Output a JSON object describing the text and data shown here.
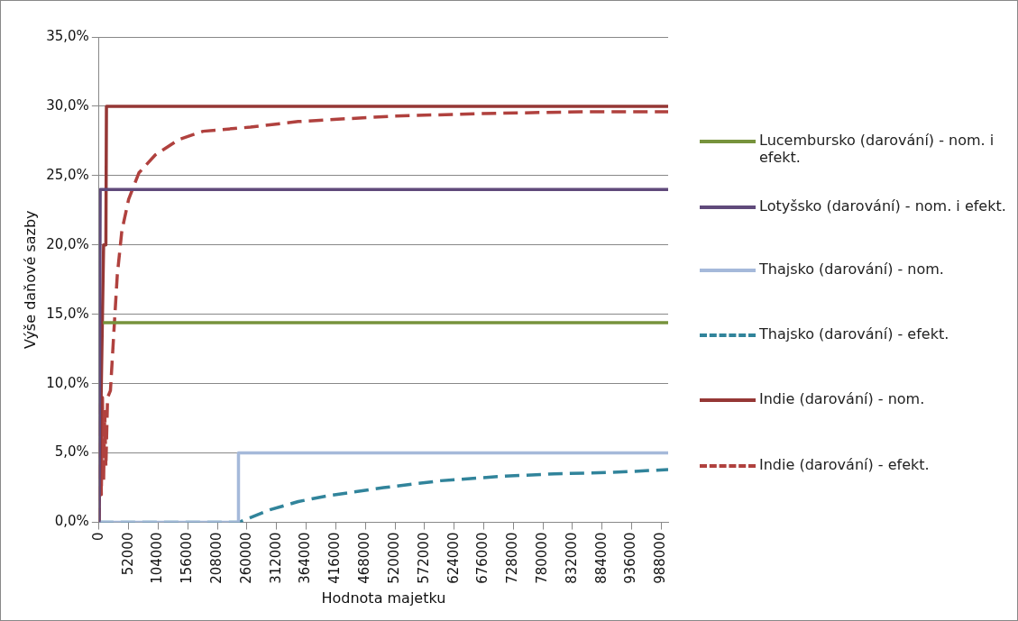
{
  "chart_data": {
    "type": "line",
    "xlabel": "Hodnota majetku",
    "ylabel": "Výše daňové sazby",
    "xlim": [
      0,
      1000000
    ],
    "xticks": [
      0,
      52000,
      104000,
      156000,
      208000,
      260000,
      312000,
      364000,
      416000,
      468000,
      520000,
      572000,
      624000,
      676000,
      728000,
      780000,
      832000,
      884000,
      936000,
      988000
    ],
    "ylim": [
      0,
      35
    ],
    "yticks": [
      {
        "value": 0,
        "label": "0,0%"
      },
      {
        "value": 5,
        "label": "5,0%"
      },
      {
        "value": 10,
        "label": "10,0%"
      },
      {
        "value": 15,
        "label": "15,0%"
      },
      {
        "value": 20,
        "label": "20,0%"
      },
      {
        "value": 25,
        "label": "25,0%"
      },
      {
        "value": 30,
        "label": "30,0%"
      },
      {
        "value": 35,
        "label": "35,0%"
      }
    ],
    "grid": "y",
    "legend": "right",
    "marker": "none",
    "series": [
      {
        "name": "Lucembursko (darování) - nom. i efekt.",
        "color": "#77933c",
        "line_style": "solid",
        "x": [
          7000,
          1000000
        ],
        "values": [
          14.4,
          14.4
        ]
      },
      {
        "name": "Lotyšsko (darování) - nom. i efekt.",
        "color": "#604a7b",
        "line_style": "solid",
        "x": [
          0,
          2000,
          1000000
        ],
        "values": [
          0,
          24,
          24
        ]
      },
      {
        "name": "Thajsko (darování) - nom.",
        "color": "#a5b9da",
        "line_style": "solid",
        "x": [
          0,
          245000,
          245000,
          1000000
        ],
        "values": [
          0,
          0,
          5,
          5
        ]
      },
      {
        "name": "Thajsko (darování) - efekt.",
        "color": "#31849b",
        "line_style": "dashed",
        "x": [
          0,
          245000,
          300000,
          350000,
          400000,
          500000,
          600000,
          700000,
          800000,
          900000,
          1000000
        ],
        "values": [
          0,
          0,
          0.9,
          1.5,
          1.9,
          2.5,
          3,
          3.3,
          3.5,
          3.6,
          3.8
        ]
      },
      {
        "name": "Indie (darování) - nom.",
        "color": "#953735",
        "line_style": "solid",
        "x": [
          0,
          8000,
          12000,
          13000,
          1000000
        ],
        "values": [
          0,
          20,
          20,
          30,
          30
        ]
      },
      {
        "name": "Indie (darování) - efekt.",
        "color": "#b0413e",
        "line_style": "dashed",
        "x": [
          0,
          2000,
          4000,
          6000,
          8000,
          10000,
          12000,
          15000,
          20000,
          26000,
          32000,
          40000,
          52000,
          70000,
          99000,
          140000,
          183000,
          266000,
          350000,
          434000,
          520000,
          700000,
          850000,
          1000000
        ],
        "values": [
          0,
          8.5,
          2,
          9,
          3,
          8,
          4,
          9,
          9.5,
          13.7,
          17.8,
          21,
          23.3,
          25.2,
          26.5,
          27.6,
          28.2,
          28.5,
          28.9,
          29.1,
          29.3,
          29.5,
          29.6,
          29.6
        ]
      }
    ]
  }
}
